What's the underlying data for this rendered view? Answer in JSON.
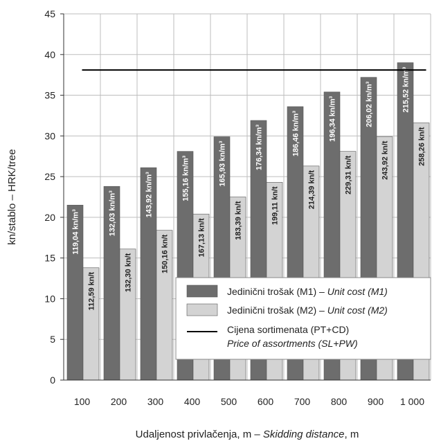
{
  "chart_data": {
    "type": "bar",
    "categories": [
      "100",
      "200",
      "300",
      "400",
      "500",
      "600",
      "700",
      "800",
      "900",
      "1 000"
    ],
    "series": [
      {
        "name": "Jedinični trošak (M1) – Unit cost (M1)",
        "name_parts": [
          "Jedinični trošak (M1) – ",
          "Unit cost (M1)"
        ],
        "values": [
          21.5,
          23.8,
          26.1,
          28.1,
          29.9,
          31.9,
          33.6,
          35.4,
          37.2,
          39.0
        ],
        "labels": [
          "119,04 kn/m³",
          "132,03 kn/m³",
          "143,92 kn/m³",
          "155,16 kn/m³",
          "165,93 kn/m³",
          "176,34 kn/m³",
          "186,46 kn/m³",
          "196,34 kn/m³",
          "206,02 kn/m³",
          "215,52 kn/m³"
        ],
        "color": "#6d6d6d"
      },
      {
        "name": "Jedinični trošak (M2) – Unit cost (M2)",
        "name_parts": [
          "Jedinični trošak (M2) – ",
          "Unit cost (M2)"
        ],
        "values": [
          13.8,
          16.1,
          18.4,
          20.4,
          22.5,
          24.3,
          26.3,
          28.1,
          29.9,
          31.6
        ],
        "labels": [
          "112,59 kn/t",
          "132,30 kn/t",
          "150,16 kn/t",
          "167,13 kn/t",
          "183,39 kn/t",
          "199,11 kn/t",
          "214,39 kn/t",
          "229,31 kn/t",
          "243,92 kn/t",
          "258,26 kn/t"
        ],
        "color": "#d3d3d3"
      }
    ],
    "line": {
      "name_line1": "Cijena sortimenata (PT+CD)",
      "name_line2": "Price of assortments (SL+PW)",
      "value": 38.1,
      "color": "#000000"
    },
    "xlabel_parts": [
      "Udaljenost privlačenja, m  –  ",
      "Skidding distance",
      ", m"
    ],
    "ylabel": "kn/stablo  –  HRK/tree",
    "ylim": [
      0,
      45
    ],
    "yticks": [
      0,
      5,
      10,
      15,
      20,
      25,
      30,
      35,
      40,
      45
    ],
    "grid": true,
    "legend_position": "bottom-right"
  }
}
